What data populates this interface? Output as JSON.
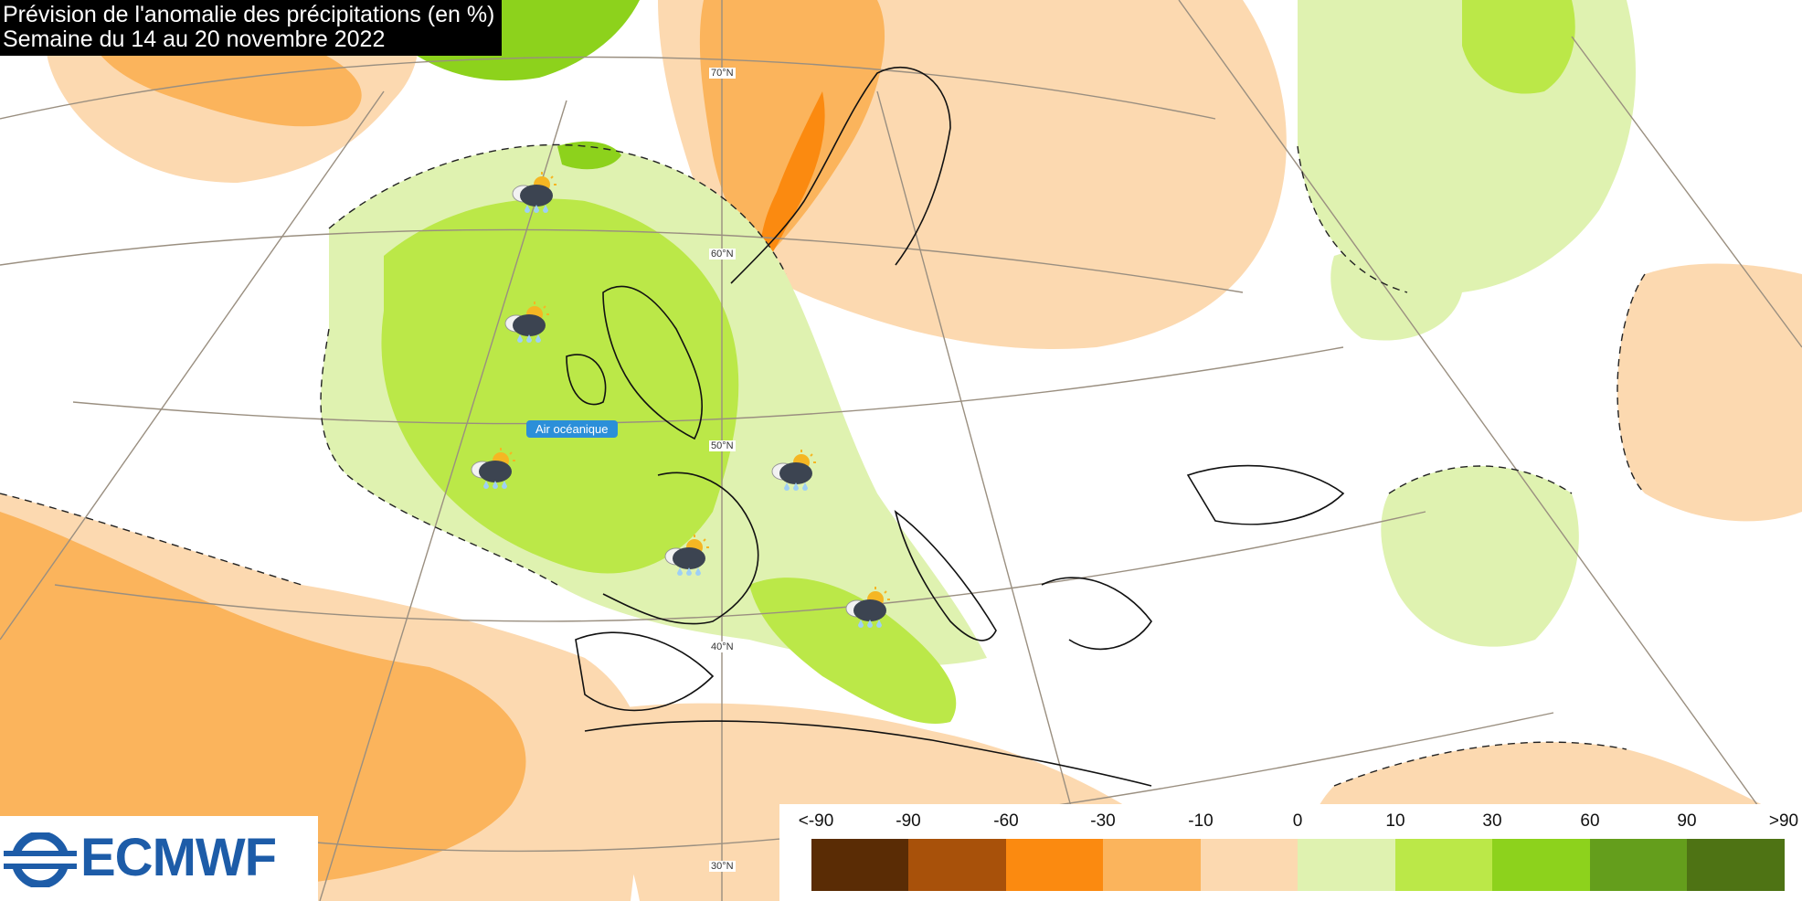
{
  "title": {
    "line1": "Prévision de l'anomalie des précipitations (en %)",
    "line2": "Semaine du 14 au 20 novembre 2022"
  },
  "logo": {
    "text": "ECMWF",
    "color": "#1d5ca8"
  },
  "annotation": {
    "air_mass": "Air océanique"
  },
  "latitude_labels": [
    "70°N",
    "60°N",
    "50°N",
    "40°N",
    "30°N"
  ],
  "legend": {
    "labels": [
      "<-90",
      "-90",
      "-60",
      "-30",
      "-10",
      "0",
      "10",
      "30",
      "60",
      "90",
      ">90"
    ],
    "colors": [
      "#5a2c05",
      "#a8510a",
      "#fb8a10",
      "#fbb45c",
      "#fcd9b0",
      "#dff2b0",
      "#bbe848",
      "#8dd21c",
      "#649e1c",
      "#4e7314"
    ]
  },
  "weather_icons": [
    "rain-shower-icon",
    "rain-shower-icon",
    "rain-shower-icon",
    "rain-shower-icon",
    "rain-shower-icon",
    "rain-shower-icon"
  ]
}
